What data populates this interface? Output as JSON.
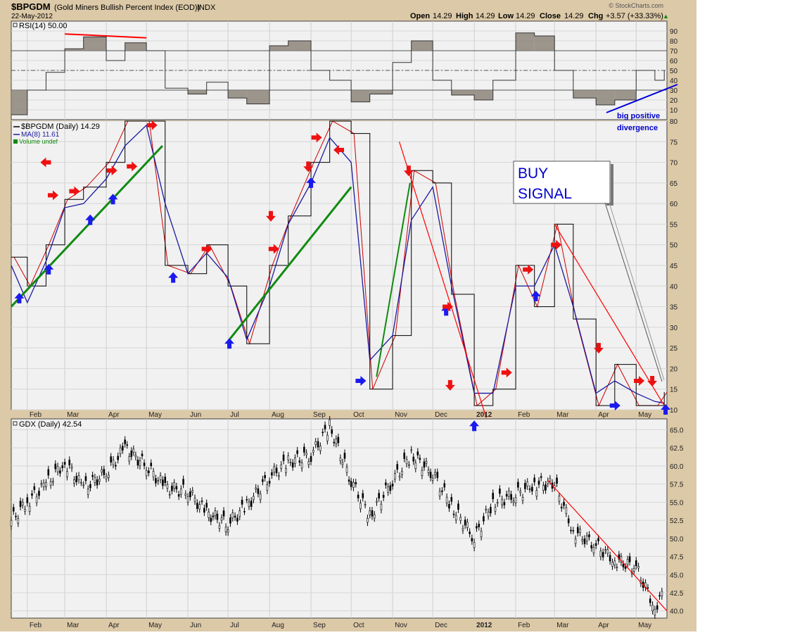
{
  "header": {
    "symbol": "$BPGDM",
    "name": "(Gold Miners Bullish Percent Index (EOD))",
    "exchange": "INDX",
    "date": "22-May-2012",
    "watermark": "© StockCharts.com",
    "open_label": "Open",
    "open": "14.29",
    "high_label": "High",
    "high": "14.29",
    "low_label": "Low",
    "low": "14.29",
    "close_label": "Close",
    "close": "14.29",
    "chg_label": "Chg",
    "chg": "+3.57 (+33.33%)",
    "chg_arrow": "▲"
  },
  "colors": {
    "frame": "#dcc9a7",
    "panel": "#f1f1f1",
    "price": "#000000",
    "ma": "#1a1aa0",
    "signal": "#cc0000",
    "trend_red": "#ff0000",
    "trend_green": "#118a11",
    "trend_blue": "#0000dd",
    "arrow_up": "#1a1aee",
    "arrow_down": "#ee1111",
    "rsi_fill": "#8d857a"
  },
  "x_axis_labels": [
    "Feb",
    "Mar",
    "Apr",
    "May",
    "Jun",
    "Jul",
    "Aug",
    "Sep",
    "Oct",
    "Nov",
    "Dec",
    "2012",
    "Feb",
    "Mar",
    "Apr",
    "May"
  ],
  "rsi_panel": {
    "legend": "RSI(14) 50.00",
    "ticks": [
      "90",
      "80",
      "70",
      "60",
      "50",
      "40",
      "30",
      "20",
      "10"
    ],
    "annotation_line1": "big positive",
    "annotation_line2": "divergence"
  },
  "bp_panel": {
    "legend_price": "$BPGDM (Daily) 14.29",
    "legend_ma": "MA(8) 11.61",
    "legend_volume": "Volume undef",
    "ticks": [
      "80",
      "75",
      "70",
      "65",
      "60",
      "55",
      "50",
      "45",
      "40",
      "35",
      "30",
      "25",
      "20",
      "15",
      "10"
    ],
    "buy_signal_line1": "BUY",
    "buy_signal_line2": "SIGNAL"
  },
  "gdx_panel": {
    "legend": "GDX (Daily) 42.54",
    "ticks": [
      "65.0",
      "62.5",
      "60.0",
      "57.5",
      "55.0",
      "52.5",
      "50.0",
      "47.5",
      "45.0",
      "42.5",
      "40.0"
    ]
  },
  "chart_data": [
    {
      "type": "line",
      "title": "RSI(14)",
      "ylim": [
        0,
        100
      ],
      "reference_lines": [
        70,
        50,
        30
      ],
      "x": [
        "2011-01-20",
        "2011-02-01",
        "2011-02-15",
        "2011-03-01",
        "2011-03-15",
        "2011-04-01",
        "2011-04-15",
        "2011-05-01",
        "2011-05-15",
        "2011-06-01",
        "2011-06-15",
        "2011-07-01",
        "2011-07-15",
        "2011-08-01",
        "2011-08-15",
        "2011-09-01",
        "2011-09-15",
        "2011-10-01",
        "2011-10-15",
        "2011-11-01",
        "2011-11-15",
        "2011-12-01",
        "2011-12-15",
        "2012-01-01",
        "2012-01-15",
        "2012-02-01",
        "2012-02-15",
        "2012-03-01",
        "2012-03-15",
        "2012-04-01",
        "2012-04-15",
        "2012-05-01",
        "2012-05-15",
        "2012-05-22"
      ],
      "series": [
        {
          "name": "RSI(14)",
          "values": [
            5,
            30,
            48,
            72,
            84,
            60,
            78,
            70,
            32,
            26,
            38,
            22,
            16,
            75,
            80,
            50,
            40,
            18,
            26,
            58,
            80,
            40,
            25,
            20,
            40,
            88,
            85,
            50,
            22,
            15,
            20,
            50,
            40,
            50
          ]
        }
      ]
    },
    {
      "type": "line",
      "title": "$BPGDM (Gold Miners Bullish Percent Index (EOD))",
      "ylim": [
        10,
        80
      ],
      "x": [
        "2011-01-20",
        "2011-02-01",
        "2011-02-15",
        "2011-03-01",
        "2011-03-15",
        "2011-04-01",
        "2011-04-15",
        "2011-05-01",
        "2011-05-15",
        "2011-06-01",
        "2011-06-15",
        "2011-07-01",
        "2011-07-15",
        "2011-08-01",
        "2011-08-15",
        "2011-09-01",
        "2011-09-15",
        "2011-10-01",
        "2011-10-15",
        "2011-11-01",
        "2011-11-15",
        "2011-12-01",
        "2011-12-15",
        "2012-01-01",
        "2012-01-15",
        "2012-02-01",
        "2012-02-15",
        "2012-03-01",
        "2012-03-15",
        "2012-04-01",
        "2012-04-15",
        "2012-05-01",
        "2012-05-15",
        "2012-05-22"
      ],
      "series": [
        {
          "name": "$BPGDM (Daily)",
          "values": [
            47,
            40,
            50,
            61,
            64,
            70,
            80,
            80,
            45,
            43,
            50,
            40,
            26,
            45,
            57,
            70,
            80,
            77,
            15,
            28,
            68,
            65,
            38,
            11,
            15,
            45,
            35,
            55,
            32,
            11,
            21,
            11,
            11,
            14.29
          ]
        },
        {
          "name": "MA(8)",
          "values": [
            45,
            36,
            46,
            59,
            60,
            66,
            74,
            79,
            60,
            43,
            48,
            42,
            27,
            40,
            55,
            65,
            76,
            70,
            22,
            28,
            56,
            64,
            40,
            14,
            14,
            40,
            40,
            50,
            35,
            14,
            17,
            14,
            12,
            11.61
          ]
        }
      ]
    },
    {
      "type": "line",
      "title": "GDX (Daily)",
      "ylim": [
        39,
        66.5
      ],
      "x": [
        "2011-01-20",
        "2011-02-01",
        "2011-02-15",
        "2011-03-01",
        "2011-03-15",
        "2011-04-01",
        "2011-04-15",
        "2011-05-01",
        "2011-05-15",
        "2011-06-01",
        "2011-06-15",
        "2011-07-01",
        "2011-07-15",
        "2011-08-01",
        "2011-08-15",
        "2011-09-01",
        "2011-09-15",
        "2011-10-01",
        "2011-10-15",
        "2011-11-01",
        "2011-11-15",
        "2011-12-01",
        "2011-12-15",
        "2012-01-01",
        "2012-01-15",
        "2012-02-01",
        "2012-02-15",
        "2012-03-01",
        "2012-03-15",
        "2012-04-01",
        "2012-04-15",
        "2012-05-01",
        "2012-05-15",
        "2012-05-22"
      ],
      "series": [
        {
          "name": "GDX (Daily)",
          "values": [
            52.5,
            55,
            57.5,
            60.5,
            57,
            59,
            62.5,
            60,
            57,
            56.5,
            53.5,
            52,
            54.5,
            58.5,
            60.5,
            61.5,
            65.5,
            58,
            53,
            58,
            61.5,
            59,
            54.5,
            50,
            55,
            56,
            57.5,
            57.5,
            51,
            49,
            47,
            46,
            40.5,
            42.54
          ]
        }
      ]
    }
  ]
}
